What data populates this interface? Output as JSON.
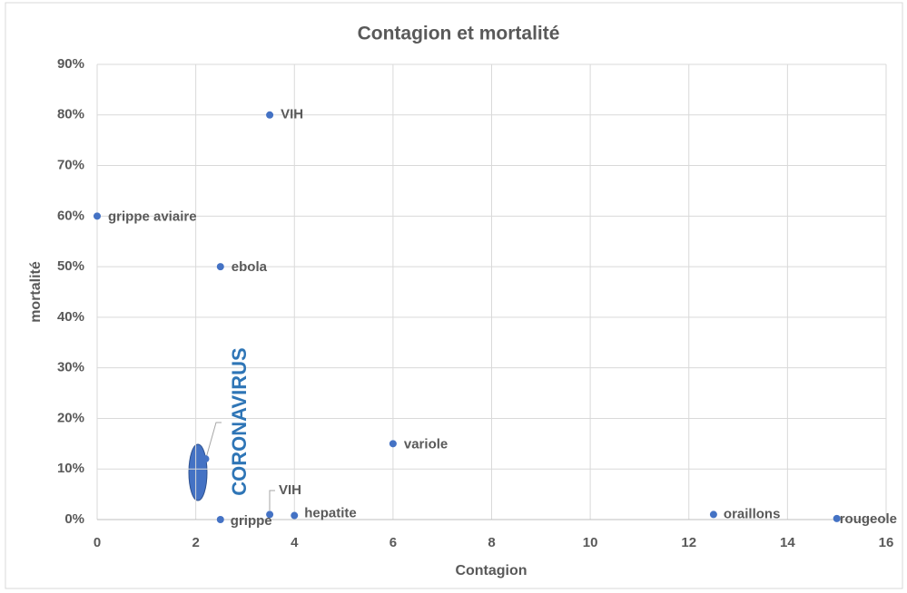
{
  "chart_data": {
    "type": "scatter",
    "title": "Contagion et mortalité",
    "x_label": "Contagion",
    "y_label": "mortalité",
    "labels": [
      "VIH",
      "grippe aviaire",
      "ebola",
      "variole",
      "CORONAVIRUS",
      "VIH",
      "grippe",
      "hepatite",
      "oraillons",
      "rougeole"
    ],
    "x": [
      3.5,
      0,
      2.5,
      6,
      2.2,
      3.5,
      2.5,
      4,
      12.5,
      15
    ],
    "values": [
      80,
      60,
      50,
      15,
      12,
      1,
      0,
      0.8,
      1,
      0.2
    ],
    "color": "#4472c4",
    "xlim": [
      0,
      16
    ],
    "xticks": [
      0,
      2,
      4,
      6,
      8,
      10,
      12,
      14,
      16
    ],
    "ylim": [
      0,
      90
    ],
    "yticks": [
      {
        "value": 0,
        "label": "0%"
      },
      {
        "value": 10,
        "label": "10%"
      },
      {
        "value": 20,
        "label": "20%"
      },
      {
        "value": 30,
        "label": "30%"
      },
      {
        "value": 40,
        "label": "40%"
      },
      {
        "value": 50,
        "label": "50%"
      },
      {
        "value": 60,
        "label": "60%"
      },
      {
        "value": 70,
        "label": "70%"
      },
      {
        "value": 80,
        "label": "80%"
      },
      {
        "value": 90,
        "label": "90%"
      }
    ],
    "grid": true
  }
}
